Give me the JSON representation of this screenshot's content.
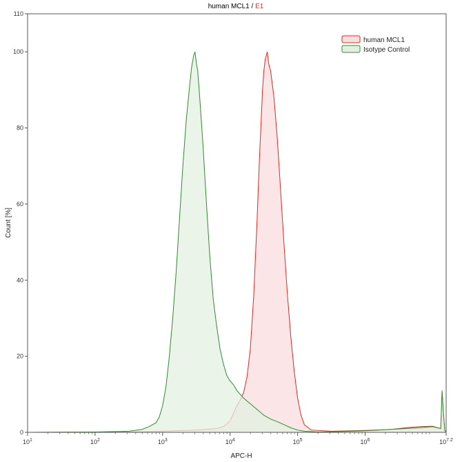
{
  "chart_data": {
    "type": "area",
    "title_prefix": "human MCL1",
    "title_separator": " / ",
    "title_suffix": "E1",
    "title_colors": {
      "prefix": "#000000",
      "suffix": "#e0271f"
    },
    "xlabel": "APC-H",
    "ylabel": "Count [%]",
    "xscale": "log",
    "xlim_log10": [
      1,
      7.2
    ],
    "x_ticks": [
      {
        "base": "10",
        "exp": "1"
      },
      {
        "base": "10",
        "exp": "2"
      },
      {
        "base": "10",
        "exp": "3"
      },
      {
        "base": "10",
        "exp": "4"
      },
      {
        "base": "10",
        "exp": "5"
      },
      {
        "base": "10",
        "exp": "6"
      },
      {
        "base": "10",
        "exp": "7.2"
      }
    ],
    "ylim": [
      0,
      110
    ],
    "y_ticks": [
      "0",
      "20",
      "40",
      "60",
      "80",
      "100",
      "110"
    ],
    "grid": false,
    "legend_position": "top-right",
    "series": [
      {
        "name": "human MCL1",
        "color": "#e0271f",
        "fill": "#fbdcdf",
        "x_log10": [
          1.0,
          2.5,
          3.0,
          3.5,
          3.8,
          3.9,
          4.0,
          4.05,
          4.1,
          4.15,
          4.2,
          4.25,
          4.3,
          4.35,
          4.4,
          4.43,
          4.46,
          4.48,
          4.5,
          4.52,
          4.55,
          4.57,
          4.6,
          4.65,
          4.7,
          4.75,
          4.8,
          4.85,
          4.9,
          4.95,
          5.0,
          5.05,
          5.1,
          5.2,
          5.5,
          6.0,
          6.4,
          6.6,
          6.8,
          7.0,
          7.12,
          7.14,
          7.16,
          7.18,
          7.2
        ],
        "y": [
          0,
          0.1,
          0.3,
          0.6,
          1.0,
          1.5,
          3.0,
          5.0,
          7.0,
          8.5,
          10.5,
          14.5,
          22.0,
          36.0,
          56.0,
          70.0,
          82.0,
          90.0,
          95.0,
          98.0,
          100.0,
          97.0,
          95.0,
          88.0,
          77.0,
          63.0,
          49.0,
          36.0,
          25.0,
          16.0,
          9.0,
          4.5,
          2.0,
          0.6,
          0.3,
          0.5,
          0.8,
          1.2,
          1.5,
          1.6,
          1.0,
          10.5,
          5.0,
          0.5,
          0
        ]
      },
      {
        "name": "Isotype Control",
        "color": "#2e8b2e",
        "fill": "#e3f0e1",
        "x_log10": [
          1.0,
          2.0,
          2.5,
          2.7,
          2.8,
          2.9,
          2.95,
          3.0,
          3.05,
          3.1,
          3.15,
          3.2,
          3.25,
          3.3,
          3.35,
          3.4,
          3.43,
          3.46,
          3.48,
          3.5,
          3.52,
          3.55,
          3.6,
          3.65,
          3.7,
          3.75,
          3.8,
          3.85,
          3.9,
          3.95,
          4.0,
          4.05,
          4.1,
          4.15,
          4.2,
          4.3,
          4.4,
          4.5,
          4.6,
          4.7,
          4.8,
          4.9,
          5.0,
          5.1,
          5.3,
          5.6,
          6.0,
          6.4,
          6.8,
          7.0,
          7.12,
          7.14,
          7.16,
          7.18,
          7.2
        ],
        "y": [
          0,
          0.1,
          0.3,
          0.8,
          1.5,
          2.5,
          4.0,
          7.0,
          12.0,
          20.0,
          30.0,
          42.0,
          56.0,
          70.0,
          82.0,
          91.0,
          96.0,
          99.0,
          100.0,
          97.0,
          95.0,
          88.0,
          75.0,
          60.0,
          46.0,
          35.0,
          28.0,
          22.0,
          18.0,
          15.0,
          13.5,
          12.5,
          11.0,
          10.0,
          9.0,
          7.5,
          6.0,
          4.5,
          3.5,
          2.8,
          2.0,
          1.2,
          0.6,
          0.3,
          0.1,
          0.2,
          0.4,
          0.8,
          1.2,
          1.5,
          1.0,
          11.0,
          5.0,
          0.5,
          0
        ]
      }
    ]
  }
}
